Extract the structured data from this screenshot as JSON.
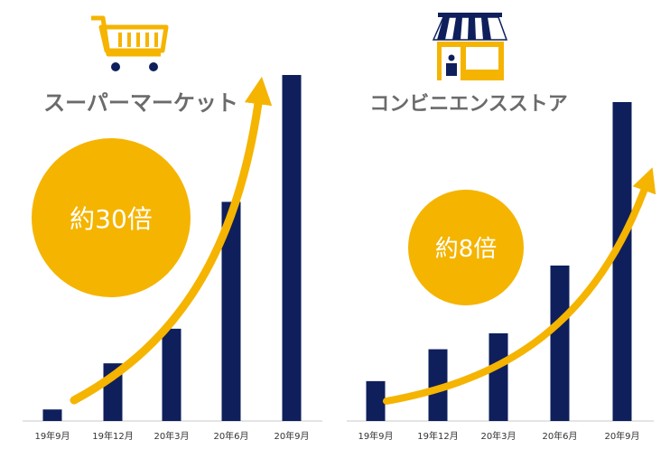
{
  "colors": {
    "bar": "#0e1f5c",
    "accent": "#f5b400",
    "title": "#6b6b6b",
    "axis": "#c8c8c8",
    "tick": "#333333"
  },
  "chart_data": [
    {
      "type": "bar",
      "title": "スーパーマーケット",
      "icon": "shopping-cart-icon",
      "annotation": "約30倍",
      "categories": [
        "19年9月",
        "19年12月",
        "20年3月",
        "20年6月",
        "20年9月"
      ],
      "values": [
        1,
        5,
        8,
        19,
        30
      ],
      "ylim": [
        0,
        30
      ]
    },
    {
      "type": "bar",
      "title": "コンビニエンスストア",
      "icon": "convenience-store-icon",
      "annotation": "約8倍",
      "categories": [
        "19年9月",
        "19年12月",
        "20年3月",
        "20年6月",
        "20年9月"
      ],
      "values": [
        1,
        1.8,
        2.2,
        3.9,
        8
      ],
      "ylim": [
        0,
        8
      ]
    }
  ]
}
